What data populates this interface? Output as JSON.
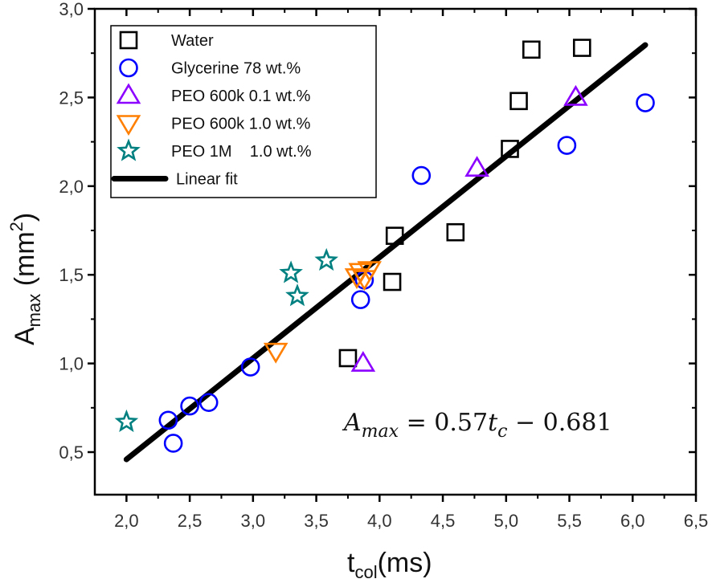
{
  "chart_data": {
    "type": "scatter",
    "title": "",
    "xlabel": "t",
    "xlabel_sub": "col",
    "xlabel_suffix": "(ms)",
    "ylabel": "A",
    "ylabel_sub": "max",
    "ylabel_suffix": " (mm",
    "ylabel_sup": "2",
    "ylabel_close": ")",
    "xlim": [
      1.75,
      6.5
    ],
    "ylim": [
      0.26,
      3.0
    ],
    "xticks": [
      2.0,
      2.5,
      3.0,
      3.5,
      4.0,
      4.5,
      5.0,
      5.5,
      6.0,
      6.5
    ],
    "xtick_labels": [
      "2,0",
      "2,5",
      "3,0",
      "3,5",
      "4,0",
      "4,5",
      "5,0",
      "5,5",
      "6,0",
      "6,5"
    ],
    "yticks": [
      0.5,
      1.0,
      1.5,
      2.0,
      2.5,
      3.0
    ],
    "ytick_labels": [
      "0,5",
      "1,0",
      "1,5",
      "2,0",
      "2,5",
      "3,0"
    ],
    "grid": false,
    "legend_position": "top-left",
    "series": [
      {
        "name": "Water",
        "marker": "square",
        "color": "#000000",
        "points": [
          [
            3.75,
            1.03
          ],
          [
            4.1,
            1.46
          ],
          [
            4.12,
            1.72
          ],
          [
            4.6,
            1.74
          ],
          [
            5.03,
            2.21
          ],
          [
            5.1,
            2.48
          ],
          [
            5.2,
            2.77
          ],
          [
            5.6,
            2.78
          ]
        ]
      },
      {
        "name": "Glycerine 78 wt.%",
        "marker": "circle",
        "color": "#0000ff",
        "points": [
          [
            2.33,
            0.68
          ],
          [
            2.37,
            0.55
          ],
          [
            2.5,
            0.76
          ],
          [
            2.65,
            0.78
          ],
          [
            2.98,
            0.98
          ],
          [
            3.85,
            1.36
          ],
          [
            3.88,
            1.47
          ],
          [
            4.33,
            2.06
          ],
          [
            5.48,
            2.23
          ],
          [
            6.1,
            2.47
          ]
        ]
      },
      {
        "name": "PEO 600k 0.1 wt.%",
        "marker": "triangle-up",
        "color": "#8b00ff",
        "points": [
          [
            3.87,
            1.0
          ],
          [
            4.77,
            2.1
          ],
          [
            5.55,
            2.5
          ]
        ]
      },
      {
        "name": "PEO 600k 1.0 wt.%",
        "marker": "triangle-down",
        "color": "#ff7f00",
        "points": [
          [
            3.18,
            1.07
          ],
          [
            3.82,
            1.49
          ],
          [
            3.85,
            1.52
          ],
          [
            3.88,
            1.48
          ],
          [
            3.92,
            1.53
          ]
        ]
      },
      {
        "name": "PEO 1M    1.0 wt.%",
        "marker": "star",
        "color": "#008080",
        "points": [
          [
            2.0,
            0.67
          ],
          [
            3.3,
            1.51
          ],
          [
            3.35,
            1.38
          ],
          [
            3.58,
            1.58
          ]
        ]
      }
    ],
    "fit": {
      "name": "Linear fit",
      "color": "#000000",
      "slope": 0.57,
      "intercept": -0.681,
      "x_range": [
        2.0,
        6.1
      ]
    },
    "annotation": {
      "lhs": "A",
      "lhs_sub": "max",
      "rhs": " = 0.57",
      "rhs_var": "t",
      "rhs_var_sub": "c",
      "rhs_tail": " − 0.681"
    }
  }
}
